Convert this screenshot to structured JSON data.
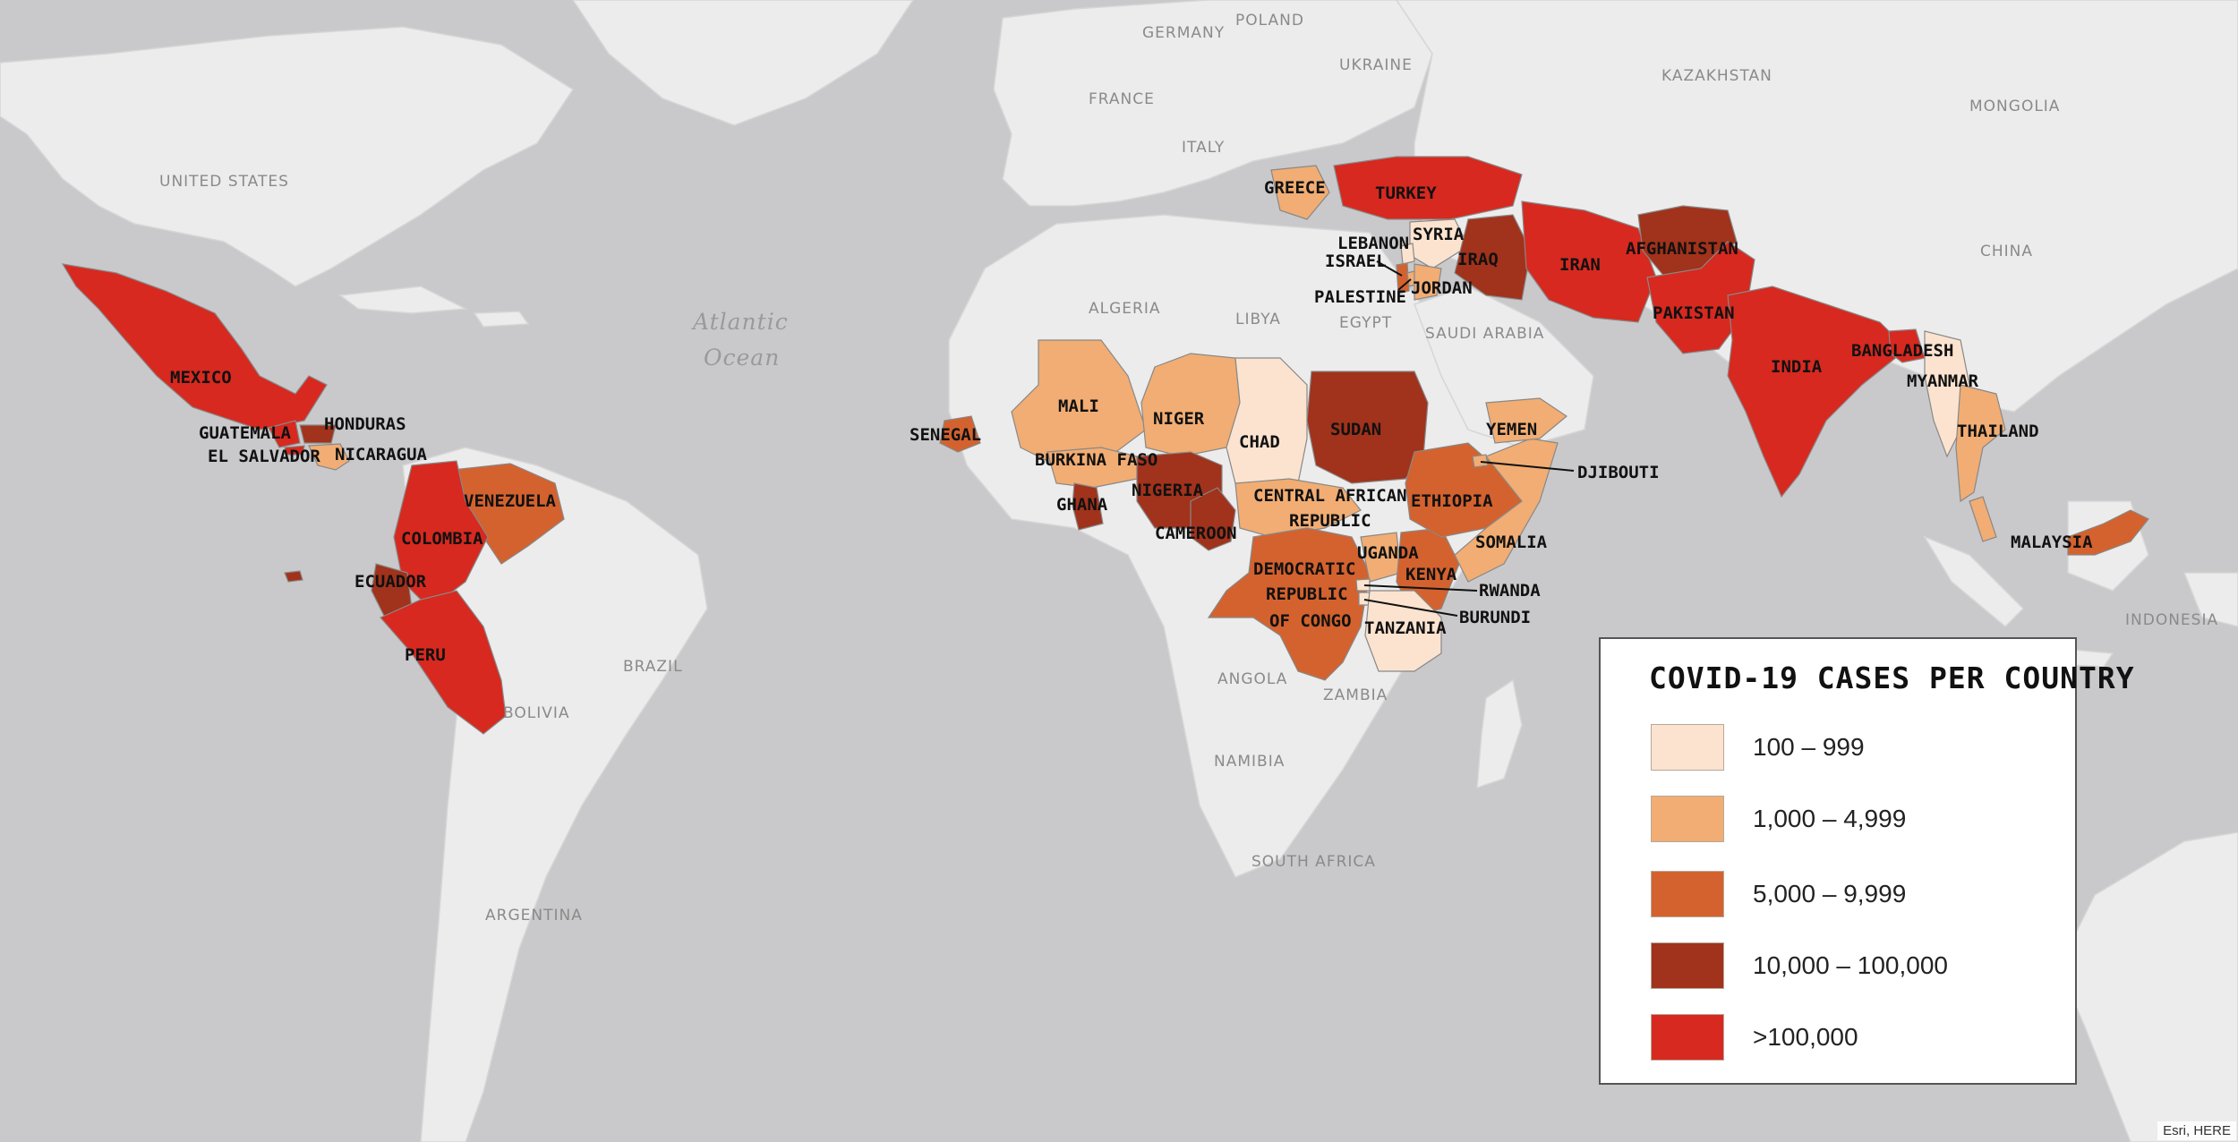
{
  "legend": {
    "title": "COVID-19 CASES PER COUNTRY",
    "items": [
      {
        "label": "100 – 999",
        "color": "#fbe3cf"
      },
      {
        "label": "1,000 – 4,999",
        "color": "#f1ad73"
      },
      {
        "label": "5,000 – 9,999",
        "color": "#d4622e"
      },
      {
        "label": "10,000 – 100,000",
        "color": "#a1321b"
      },
      {
        "label": ">100,000",
        "color": "#d7291f"
      }
    ]
  },
  "base_labels": {
    "united_states": "UNITED STATES",
    "germany": "GERMANY",
    "poland": "POLAND",
    "ukraine": "UKRAINE",
    "kazakhstan": "KAZAKHSTAN",
    "mongolia": "MONGOLIA",
    "france": "FRANCE",
    "italy": "ITALY",
    "china": "CHINA",
    "algeria": "ALGERIA",
    "libya": "LIBYA",
    "egypt": "EGYPT",
    "saudi_arabia": "SAUDI ARABIA",
    "brazil": "BRAZIL",
    "bolivia": "BOLIVIA",
    "argentina": "ARGENTINA",
    "angola": "ANGOLA",
    "zambia": "ZAMBIA",
    "namibia": "NAMIBIA",
    "south_africa": "SOUTH AFRICA",
    "indonesia": "INDONESIA"
  },
  "ocean": {
    "line1": "Atlantic",
    "line2": "Ocean"
  },
  "countries": {
    "mexico": "MEXICO",
    "guatemala": "GUATEMALA",
    "honduras": "HONDURAS",
    "el_salvador": "EL SALVADOR",
    "nicaragua": "NICARAGUA",
    "venezuela": "VENEZUELA",
    "colombia": "COLOMBIA",
    "ecuador": "ECUADOR",
    "peru": "PERU",
    "greece": "GREECE",
    "turkey": "TURKEY",
    "syria": "SYRIA",
    "lebanon": "LEBANON",
    "israel": "ISRAEL",
    "palestine": "PALESTINE",
    "jordan": "JORDAN",
    "iraq": "IRAQ",
    "iran": "IRAN",
    "afghanistan": "AFGHANISTAN",
    "pakistan": "PAKISTAN",
    "india": "INDIA",
    "bangladesh": "BANGLADESH",
    "myanmar": "MYANMAR",
    "thailand": "THAILAND",
    "malaysia": "MALAYSIA",
    "mali": "MALI",
    "niger": "NIGER",
    "chad": "CHAD",
    "sudan": "SUDAN",
    "senegal": "SENEGAL",
    "burkina_faso": "BURKINA FASO",
    "ghana": "GHANA",
    "nigeria": "NIGERIA",
    "cameroon": "CAMEROON",
    "car_line1": "CENTRAL AFRICAN",
    "car_line2": "REPUBLIC",
    "yemen": "YEMEN",
    "djibouti": "DJIBOUTI",
    "ethiopia": "ETHIOPIA",
    "somalia": "SOMALIA",
    "uganda": "UGANDA",
    "kenya": "KENYA",
    "rwanda": "RWANDA",
    "burundi": "BURUNDI",
    "drc_line1": "DEMOCRATIC",
    "drc_line2": "REPUBLIC",
    "drc_line3": "OF CONGO",
    "tanzania": "TANZANIA"
  },
  "attribution": "Esri, HERE"
}
